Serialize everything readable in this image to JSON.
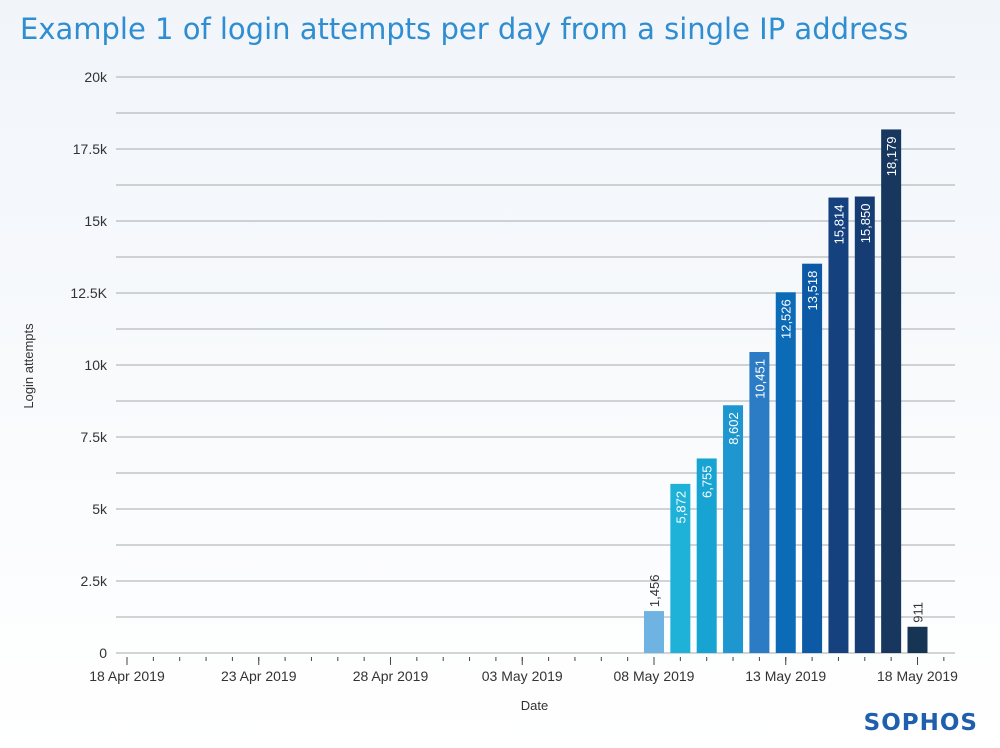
{
  "title": "Example 1 of login attempts per day from a single IP address",
  "logo_text": "SOPHOS",
  "colors": {
    "title": "#2f8dd1",
    "grid": "#a9a9a9",
    "axis_text": "#333333",
    "logo": "#1f5fae",
    "bar_palette": [
      "#6fb3e3",
      "#1eb2d9",
      "#17a4d2",
      "#1e96cf",
      "#2b7cc5",
      "#0c6bb7",
      "#0c5aa6",
      "#15427f",
      "#163c74",
      "#17375f",
      "#163555",
      "#14294c",
      "#0d1b39"
    ]
  },
  "chart_data": {
    "type": "bar",
    "title": "Example 1 of login attempts per day from a single IP address",
    "xlabel": "Date",
    "ylabel": "Login attempts",
    "ylim": [
      0,
      20000
    ],
    "y_ticks": [
      {
        "value": 0,
        "label": "0"
      },
      {
        "value": 2500,
        "label": "2.5k"
      },
      {
        "value": 5000,
        "label": "5k"
      },
      {
        "value": 7500,
        "label": "7.5k"
      },
      {
        "value": 10000,
        "label": "10k"
      },
      {
        "value": 12500,
        "label": "12.5K"
      },
      {
        "value": 15000,
        "label": "15k"
      },
      {
        "value": 17500,
        "label": "17.5k"
      },
      {
        "value": 20000,
        "label": "20k"
      }
    ],
    "x_range": [
      "2019-04-18",
      "2019-05-19"
    ],
    "x_ticks": [
      {
        "date": "2019-04-18",
        "label": "18 Apr 2019"
      },
      {
        "date": "2019-04-23",
        "label": "23 Apr 2019"
      },
      {
        "date": "2019-04-28",
        "label": "28 Apr 2019"
      },
      {
        "date": "2019-05-03",
        "label": "03 May 2019"
      },
      {
        "date": "2019-05-08",
        "label": "08 May 2019"
      },
      {
        "date": "2019-05-13",
        "label": "13 May 2019"
      },
      {
        "date": "2019-05-18",
        "label": "18 May 2019"
      }
    ],
    "grid": true,
    "legend": "none",
    "bars": [
      {
        "date": "2019-05-08",
        "value": 1456,
        "label": "1,456"
      },
      {
        "date": "2019-05-09",
        "value": 5872,
        "label": "5,872"
      },
      {
        "date": "2019-05-10",
        "value": 6755,
        "label": "6,755"
      },
      {
        "date": "2019-05-11",
        "value": 8602,
        "label": "8,602"
      },
      {
        "date": "2019-05-12",
        "value": 10451,
        "label": "10,451"
      },
      {
        "date": "2019-05-13",
        "value": 12526,
        "label": "12,526"
      },
      {
        "date": "2019-05-14",
        "value": 13518,
        "label": "13,518"
      },
      {
        "date": "2019-05-15",
        "value": 15814,
        "label": "15,814"
      },
      {
        "date": "2019-05-16",
        "value": 15850,
        "label": "15,850"
      },
      {
        "date": "2019-05-17",
        "value": 18179,
        "label": "18,179"
      },
      {
        "date": "2019-05-18",
        "value": 911,
        "label": "911"
      }
    ]
  }
}
